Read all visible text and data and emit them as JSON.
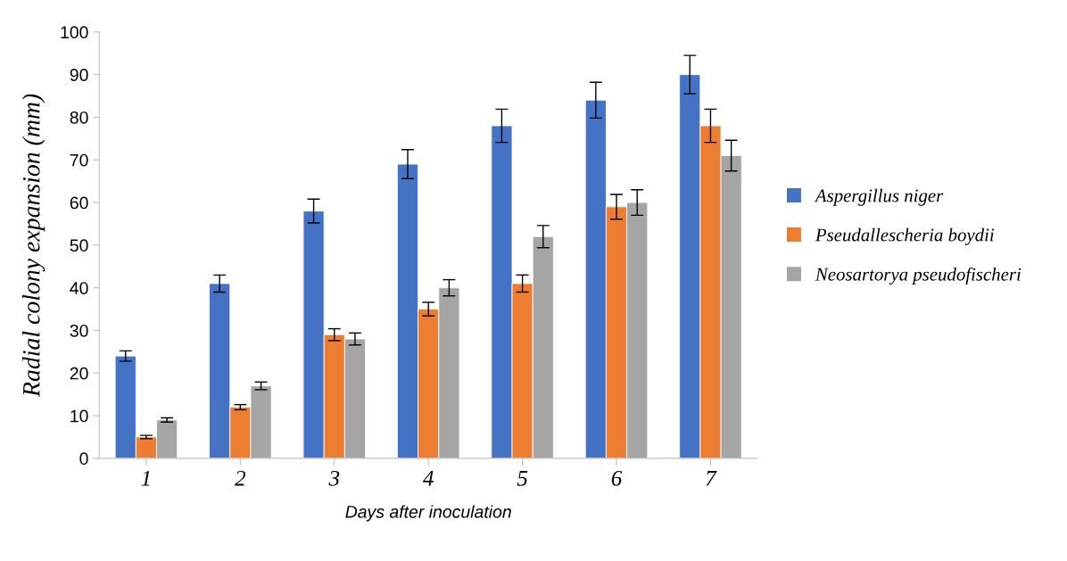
{
  "chart_data": {
    "type": "bar",
    "xlabel": "Days after inoculation",
    "ylabel": "Radial colony expansion (mm)",
    "categories": [
      "1",
      "2",
      "3",
      "4",
      "5",
      "6",
      "7"
    ],
    "series": [
      {
        "name": "Aspergillus niger",
        "color": "#4472c4",
        "values": [
          24,
          41,
          58,
          69,
          78,
          84,
          90
        ],
        "errors": [
          1.2,
          2,
          2.8,
          3.4,
          3.9,
          4.2,
          4.5
        ]
      },
      {
        "name": "Pseudallescheria boydii",
        "color": "#ed7d31",
        "values": [
          5,
          12,
          29,
          35,
          41,
          59,
          78
        ],
        "errors": [
          0.4,
          0.6,
          1.4,
          1.6,
          2,
          2.9,
          3.9
        ]
      },
      {
        "name": "Neosartorya pseudofischeri",
        "color": "#a5a5a5",
        "values": [
          9,
          17,
          28,
          40,
          52,
          60,
          71
        ],
        "errors": [
          0.5,
          0.9,
          1.4,
          1.9,
          2.6,
          3,
          3.6
        ]
      }
    ],
    "ylim": [
      0,
      100
    ],
    "yticks": [
      0,
      10,
      20,
      30,
      40,
      50,
      60,
      70,
      80,
      90,
      100
    ],
    "grid": false,
    "legend": "right"
  }
}
